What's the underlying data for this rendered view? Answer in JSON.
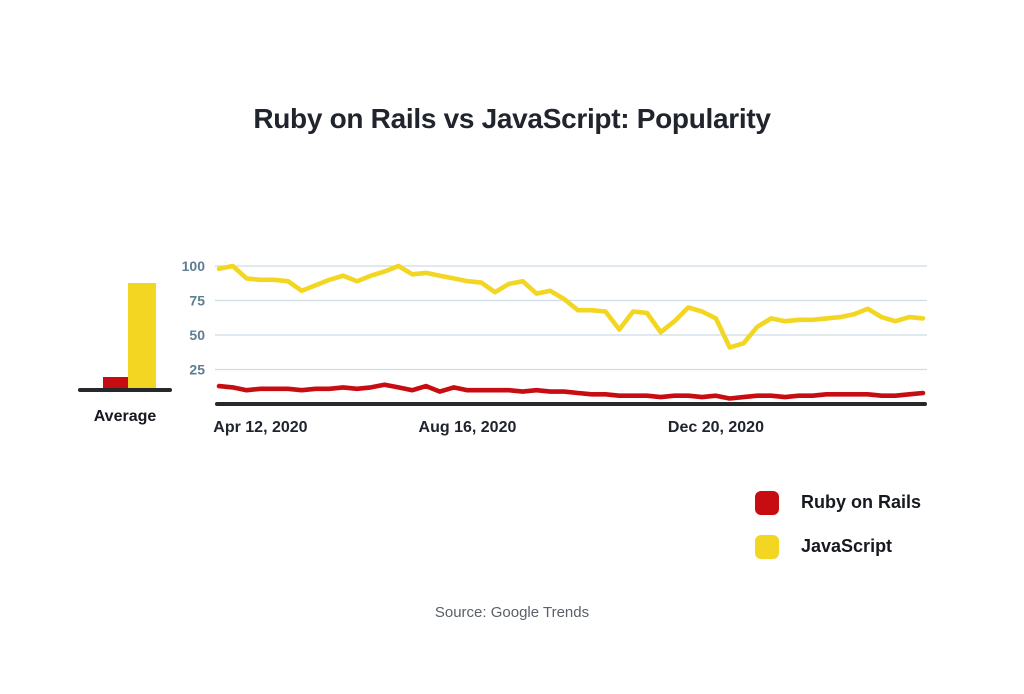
{
  "source_note": "Source: Google Trends",
  "palette": {
    "ruby_red": "#C70D11",
    "javascript_yellow": "#F2D622",
    "axis": "#26282B",
    "grid": "#CEDCE6",
    "tick_label": "#5D7E95",
    "text_dark": "#20242D"
  },
  "chart_data": [
    {
      "type": "bar",
      "title": "Average",
      "categories": [
        "Ruby on Rails",
        "JavaScript"
      ],
      "values": [
        8,
        76
      ],
      "colors": [
        "#C70D11",
        "#F2D622"
      ],
      "ylim": [
        0,
        100
      ],
      "xlabel": "",
      "ylabel": ""
    },
    {
      "type": "line",
      "title": "Ruby on Rails vs JavaScript: Popularity",
      "x_tick_labels": [
        "Apr 12, 2020",
        "Aug 16, 2020",
        "Dec 20, 2020"
      ],
      "x_tick_indices": [
        3,
        18,
        36
      ],
      "y_ticks": [
        25,
        50,
        75,
        100
      ],
      "ylim": [
        0,
        100
      ],
      "grid": "horizontal",
      "legend_position": "bottom-right",
      "series": [
        {
          "name": "Ruby on Rails",
          "color": "#C70D11",
          "values": [
            13,
            12,
            10,
            11,
            11,
            11,
            10,
            11,
            11,
            12,
            11,
            12,
            14,
            12,
            10,
            13,
            9,
            12,
            10,
            10,
            10,
            10,
            9,
            10,
            9,
            9,
            8,
            7,
            7,
            6,
            6,
            6,
            5,
            6,
            6,
            5,
            6,
            4,
            5,
            6,
            6,
            5,
            6,
            6,
            7,
            7,
            7,
            7,
            6,
            6,
            7,
            8
          ]
        },
        {
          "name": "JavaScript",
          "color": "#F2D622",
          "values": [
            98,
            100,
            91,
            90,
            90,
            89,
            82,
            86,
            90,
            93,
            89,
            93,
            96,
            100,
            94,
            95,
            93,
            91,
            89,
            88,
            81,
            87,
            89,
            80,
            82,
            76,
            68,
            68,
            67,
            54,
            67,
            66,
            52,
            60,
            70,
            67,
            62,
            41,
            44,
            56,
            62,
            60,
            61,
            61,
            62,
            63,
            65,
            69,
            63,
            60,
            63,
            62
          ]
        }
      ]
    }
  ]
}
